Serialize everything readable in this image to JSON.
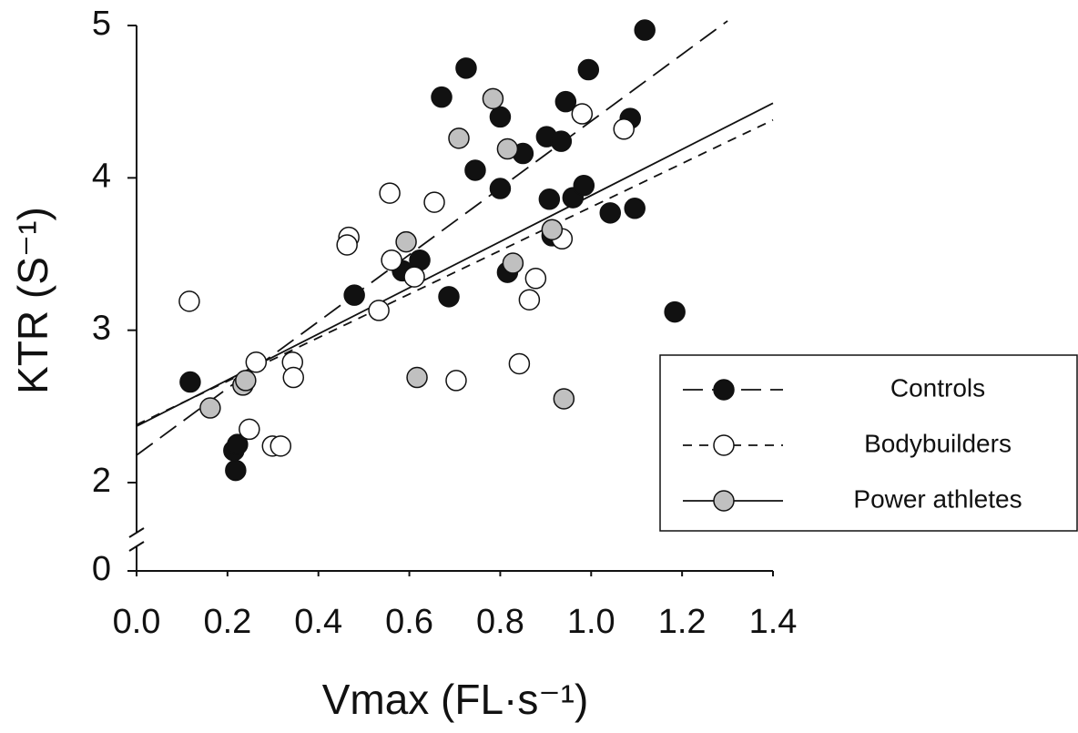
{
  "chart_data": {
    "type": "scatter",
    "x_label": "Vmax (FL·s⁻¹)",
    "y_label": "KTR (S⁻¹)",
    "xlim": [
      0,
      1.4
    ],
    "xticks": [
      {
        "value": 0,
        "label": "0.0"
      },
      0.2,
      0.4,
      0.6,
      0.8,
      {
        "value": 1,
        "label": "1.0"
      },
      1.2,
      1.4
    ],
    "ylim": [
      0,
      5
    ],
    "yticks": [
      0,
      2,
      3,
      4,
      5
    ],
    "axis_break": true,
    "legend": "lower right",
    "series": [
      {
        "name": "Controls",
        "color": "#111111",
        "line_style": "long-dash",
        "x": [
          0.118,
          0.214,
          0.222,
          0.218,
          0.479,
          0.585,
          0.623,
          0.671,
          0.687,
          0.725,
          0.745,
          0.8,
          0.8,
          0.816,
          0.85,
          0.902,
          0.944,
          0.934,
          0.908,
          0.914,
          0.96,
          0.984,
          0.994,
          1.042,
          1.086,
          1.096,
          1.118,
          1.184
        ],
        "y": [
          2.66,
          2.21,
          2.25,
          2.08,
          3.23,
          3.39,
          3.46,
          4.53,
          3.22,
          4.72,
          4.05,
          4.4,
          3.93,
          3.38,
          4.16,
          4.27,
          4.5,
          4.24,
          3.86,
          3.62,
          3.87,
          3.95,
          4.71,
          3.77,
          4.39,
          3.8,
          4.97,
          3.12
        ],
        "fit_x": [
          0,
          1.3
        ],
        "fit_y": [
          2.18,
          5.03
        ]
      },
      {
        "name": "Bodybuilders",
        "color": "#ffffff",
        "line_style": "short-dash",
        "x": [
          0.116,
          0.248,
          0.263,
          0.299,
          0.317,
          0.343,
          0.345,
          0.467,
          0.463,
          0.533,
          0.557,
          0.561,
          0.611,
          0.655,
          0.703,
          0.842,
          0.864,
          0.878,
          0.936,
          0.98,
          1.072
        ],
        "y": [
          3.19,
          2.35,
          2.79,
          2.24,
          2.24,
          2.79,
          2.69,
          3.61,
          3.56,
          3.13,
          3.9,
          3.46,
          3.35,
          3.84,
          2.67,
          2.78,
          3.2,
          3.34,
          3.6,
          4.42,
          4.32
        ],
        "fit_x": [
          0,
          1.4
        ],
        "fit_y": [
          2.38,
          4.38
        ]
      },
      {
        "name": "Power athletes",
        "color": "#c0c0c0",
        "line_style": "solid",
        "x": [
          0.162,
          0.234,
          0.24,
          0.593,
          0.617,
          0.709,
          0.784,
          0.816,
          0.828,
          0.914,
          0.94
        ],
        "y": [
          2.49,
          2.64,
          2.67,
          3.58,
          2.69,
          4.26,
          4.52,
          4.19,
          3.44,
          3.66,
          2.55
        ],
        "fit_x": [
          0,
          1.4
        ],
        "fit_y": [
          2.37,
          4.49
        ]
      }
    ]
  }
}
